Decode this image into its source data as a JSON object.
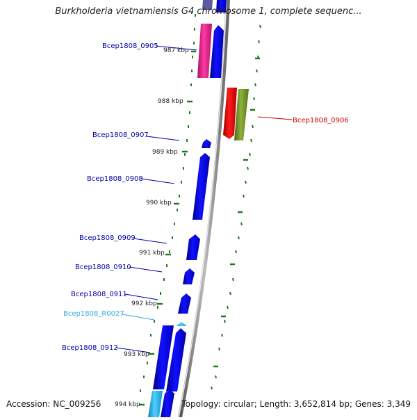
{
  "title": "Burkholderia vietnamiensis G4 chromosome 1, complete sequenc...",
  "accession": "Accession: NC_009256",
  "topology": "Topology: circular; Length: 3,652,814 bp; Genes: 3,349",
  "colors": {
    "gene_blue": "#0000ee",
    "gene_pink": "#e8208a",
    "gene_red": "#ee0000",
    "gene_olive": "#6b8e23",
    "rna_cyan": "#22b5e8",
    "tick_green": "#1f7a1f",
    "label_blue": "#0000aa",
    "label_red": "#cc0000",
    "label_cyan": "#33aadd"
  },
  "scale_labels": [
    "987 kbp",
    "988 kbp",
    "989 kbp",
    "990 kbp",
    "991 kbp",
    "992 kbp",
    "993 kbp",
    "994 kbp"
  ],
  "gene_labels": [
    {
      "text": "Bcep1808_0905",
      "color": "label_blue"
    },
    {
      "text": "Bcep1808_0906",
      "color": "label_red"
    },
    {
      "text": "Bcep1808_0907",
      "color": "label_blue"
    },
    {
      "text": "Bcep1808_0908",
      "color": "label_blue"
    },
    {
      "text": "Bcep1808_0909",
      "color": "label_blue"
    },
    {
      "text": "Bcep1808_0910",
      "color": "label_blue"
    },
    {
      "text": "Bcep1808_0911",
      "color": "label_blue"
    },
    {
      "text": "Bcep1808_R0027",
      "color": "label_cyan"
    },
    {
      "text": "Bcep1808_0912",
      "color": "label_blue"
    }
  ]
}
